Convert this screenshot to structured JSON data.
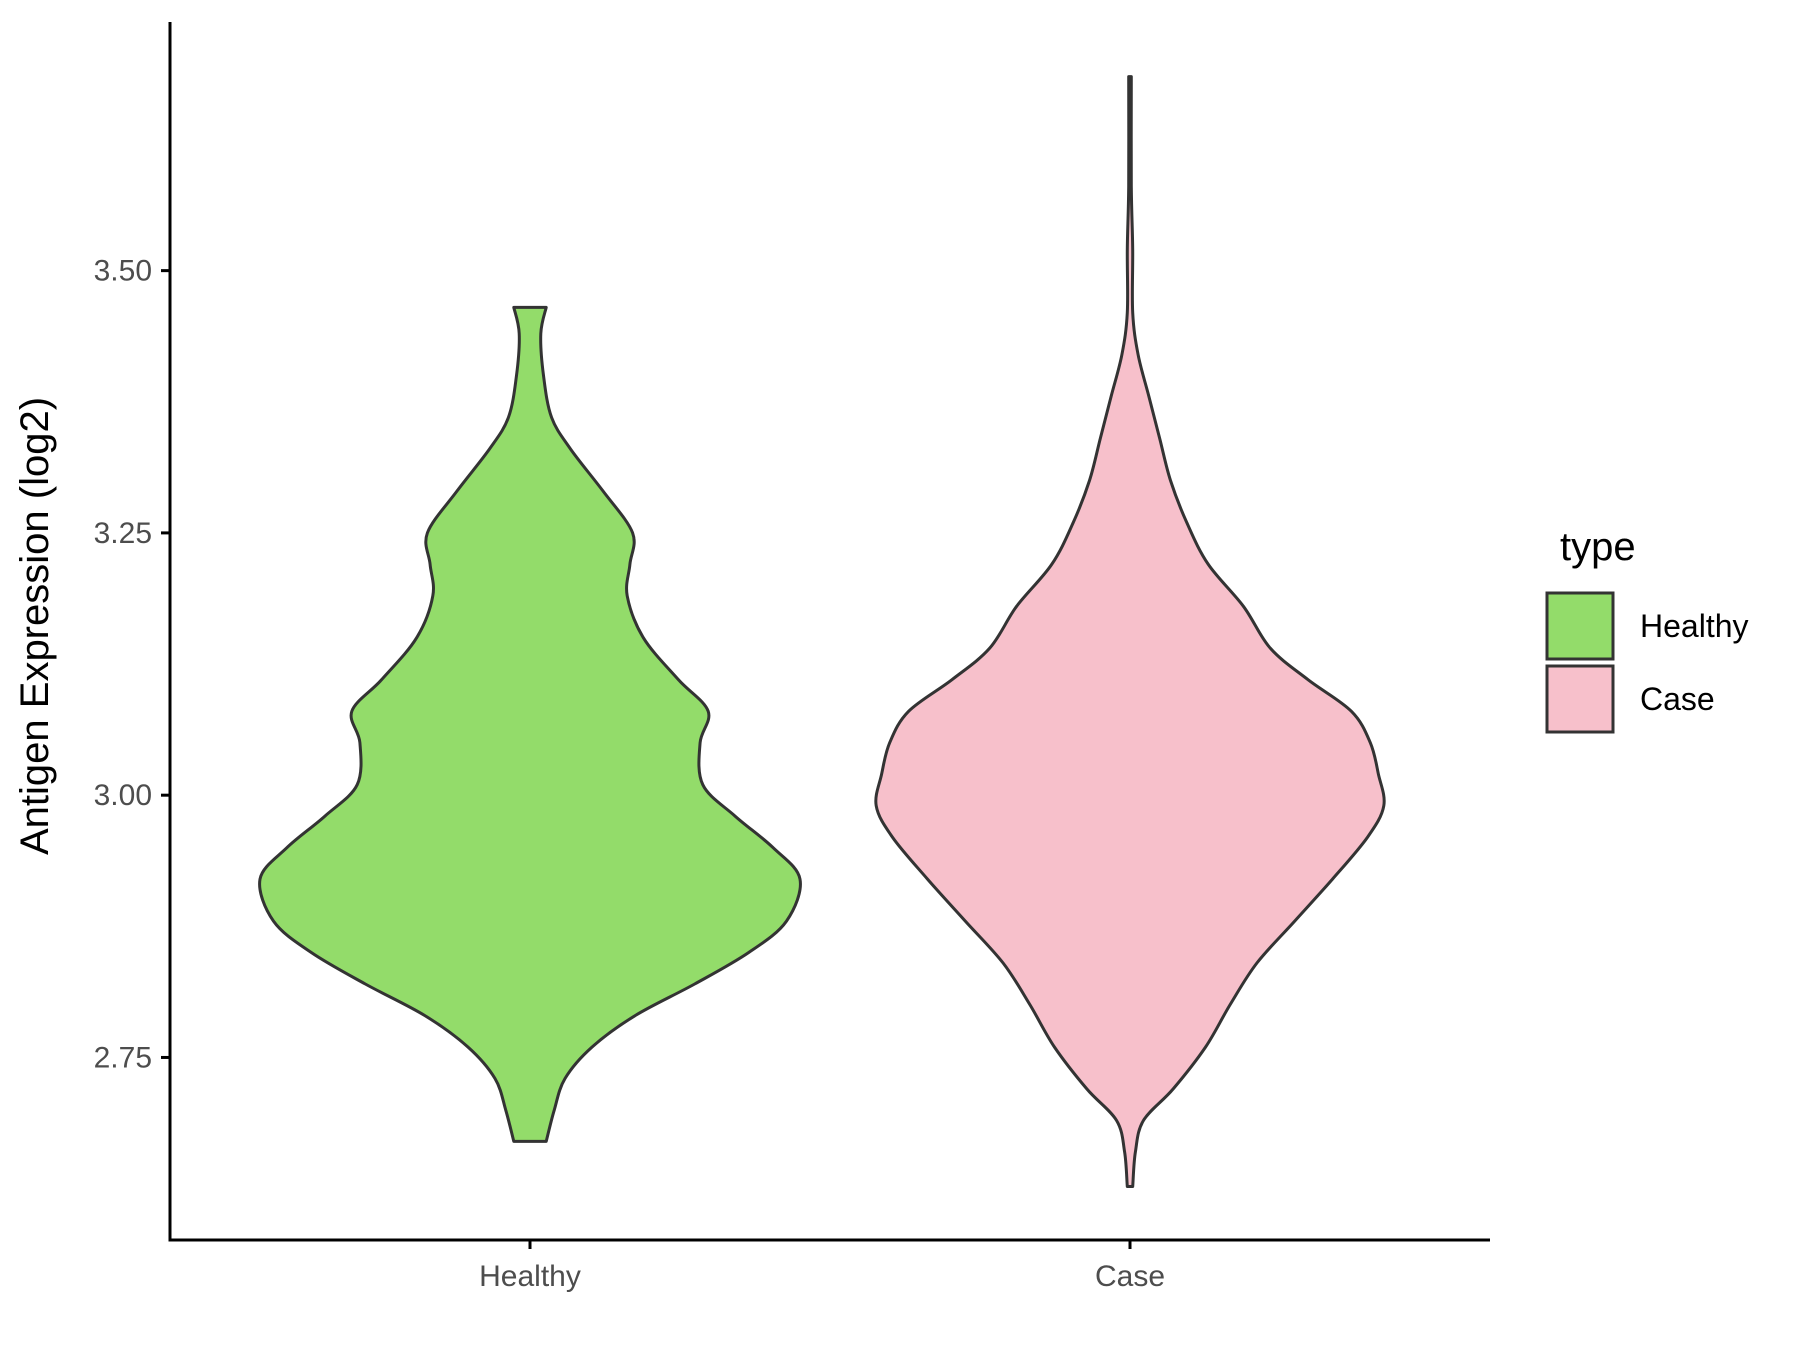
{
  "chart_data": {
    "type": "violin",
    "title": "",
    "xlabel": "",
    "ylabel": "Antigen Expression (log2)",
    "ylim": [
      2.576,
      3.737
    ],
    "yticks": [
      "2.75",
      "3.00",
      "3.25",
      "3.50"
    ],
    "categories": [
      "Healthy",
      "Case"
    ],
    "legend": {
      "title": "type",
      "placement": "right"
    },
    "grid": false,
    "series": [
      {
        "name": "Healthy",
        "color": "#93DC6A",
        "min": 2.67,
        "max": 3.465,
        "density": [
          [
            2.67,
            0.06
          ],
          [
            2.7,
            0.09
          ],
          [
            2.73,
            0.13
          ],
          [
            2.76,
            0.23
          ],
          [
            2.79,
            0.39
          ],
          [
            2.82,
            0.61
          ],
          [
            2.85,
            0.81
          ],
          [
            2.88,
            0.95
          ],
          [
            2.92,
            1.0
          ],
          [
            2.95,
            0.9
          ],
          [
            2.98,
            0.76
          ],
          [
            3.01,
            0.64
          ],
          [
            3.05,
            0.63
          ],
          [
            3.08,
            0.66
          ],
          [
            3.11,
            0.55
          ],
          [
            3.15,
            0.42
          ],
          [
            3.19,
            0.36
          ],
          [
            3.22,
            0.37
          ],
          [
            3.25,
            0.38
          ],
          [
            3.29,
            0.27
          ],
          [
            3.33,
            0.15
          ],
          [
            3.36,
            0.08
          ],
          [
            3.4,
            0.05
          ],
          [
            3.44,
            0.04
          ],
          [
            3.465,
            0.06
          ]
        ]
      },
      {
        "name": "Case",
        "color": "#F7C0CB",
        "min": 2.627,
        "max": 3.685,
        "density": [
          [
            2.627,
            0.01
          ],
          [
            2.66,
            0.02
          ],
          [
            2.69,
            0.05
          ],
          [
            2.72,
            0.16
          ],
          [
            2.76,
            0.28
          ],
          [
            2.8,
            0.37
          ],
          [
            2.84,
            0.47
          ],
          [
            2.88,
            0.61
          ],
          [
            2.92,
            0.75
          ],
          [
            2.96,
            0.88
          ],
          [
            2.99,
            0.94
          ],
          [
            3.02,
            0.92
          ],
          [
            3.05,
            0.89
          ],
          [
            3.08,
            0.82
          ],
          [
            3.11,
            0.66
          ],
          [
            3.14,
            0.52
          ],
          [
            3.18,
            0.42
          ],
          [
            3.22,
            0.29
          ],
          [
            3.26,
            0.21
          ],
          [
            3.3,
            0.15
          ],
          [
            3.34,
            0.11
          ],
          [
            3.38,
            0.07
          ],
          [
            3.42,
            0.03
          ],
          [
            3.46,
            0.01
          ],
          [
            3.52,
            0.01
          ],
          [
            3.58,
            0.005
          ],
          [
            3.685,
            0.005
          ]
        ]
      }
    ]
  }
}
